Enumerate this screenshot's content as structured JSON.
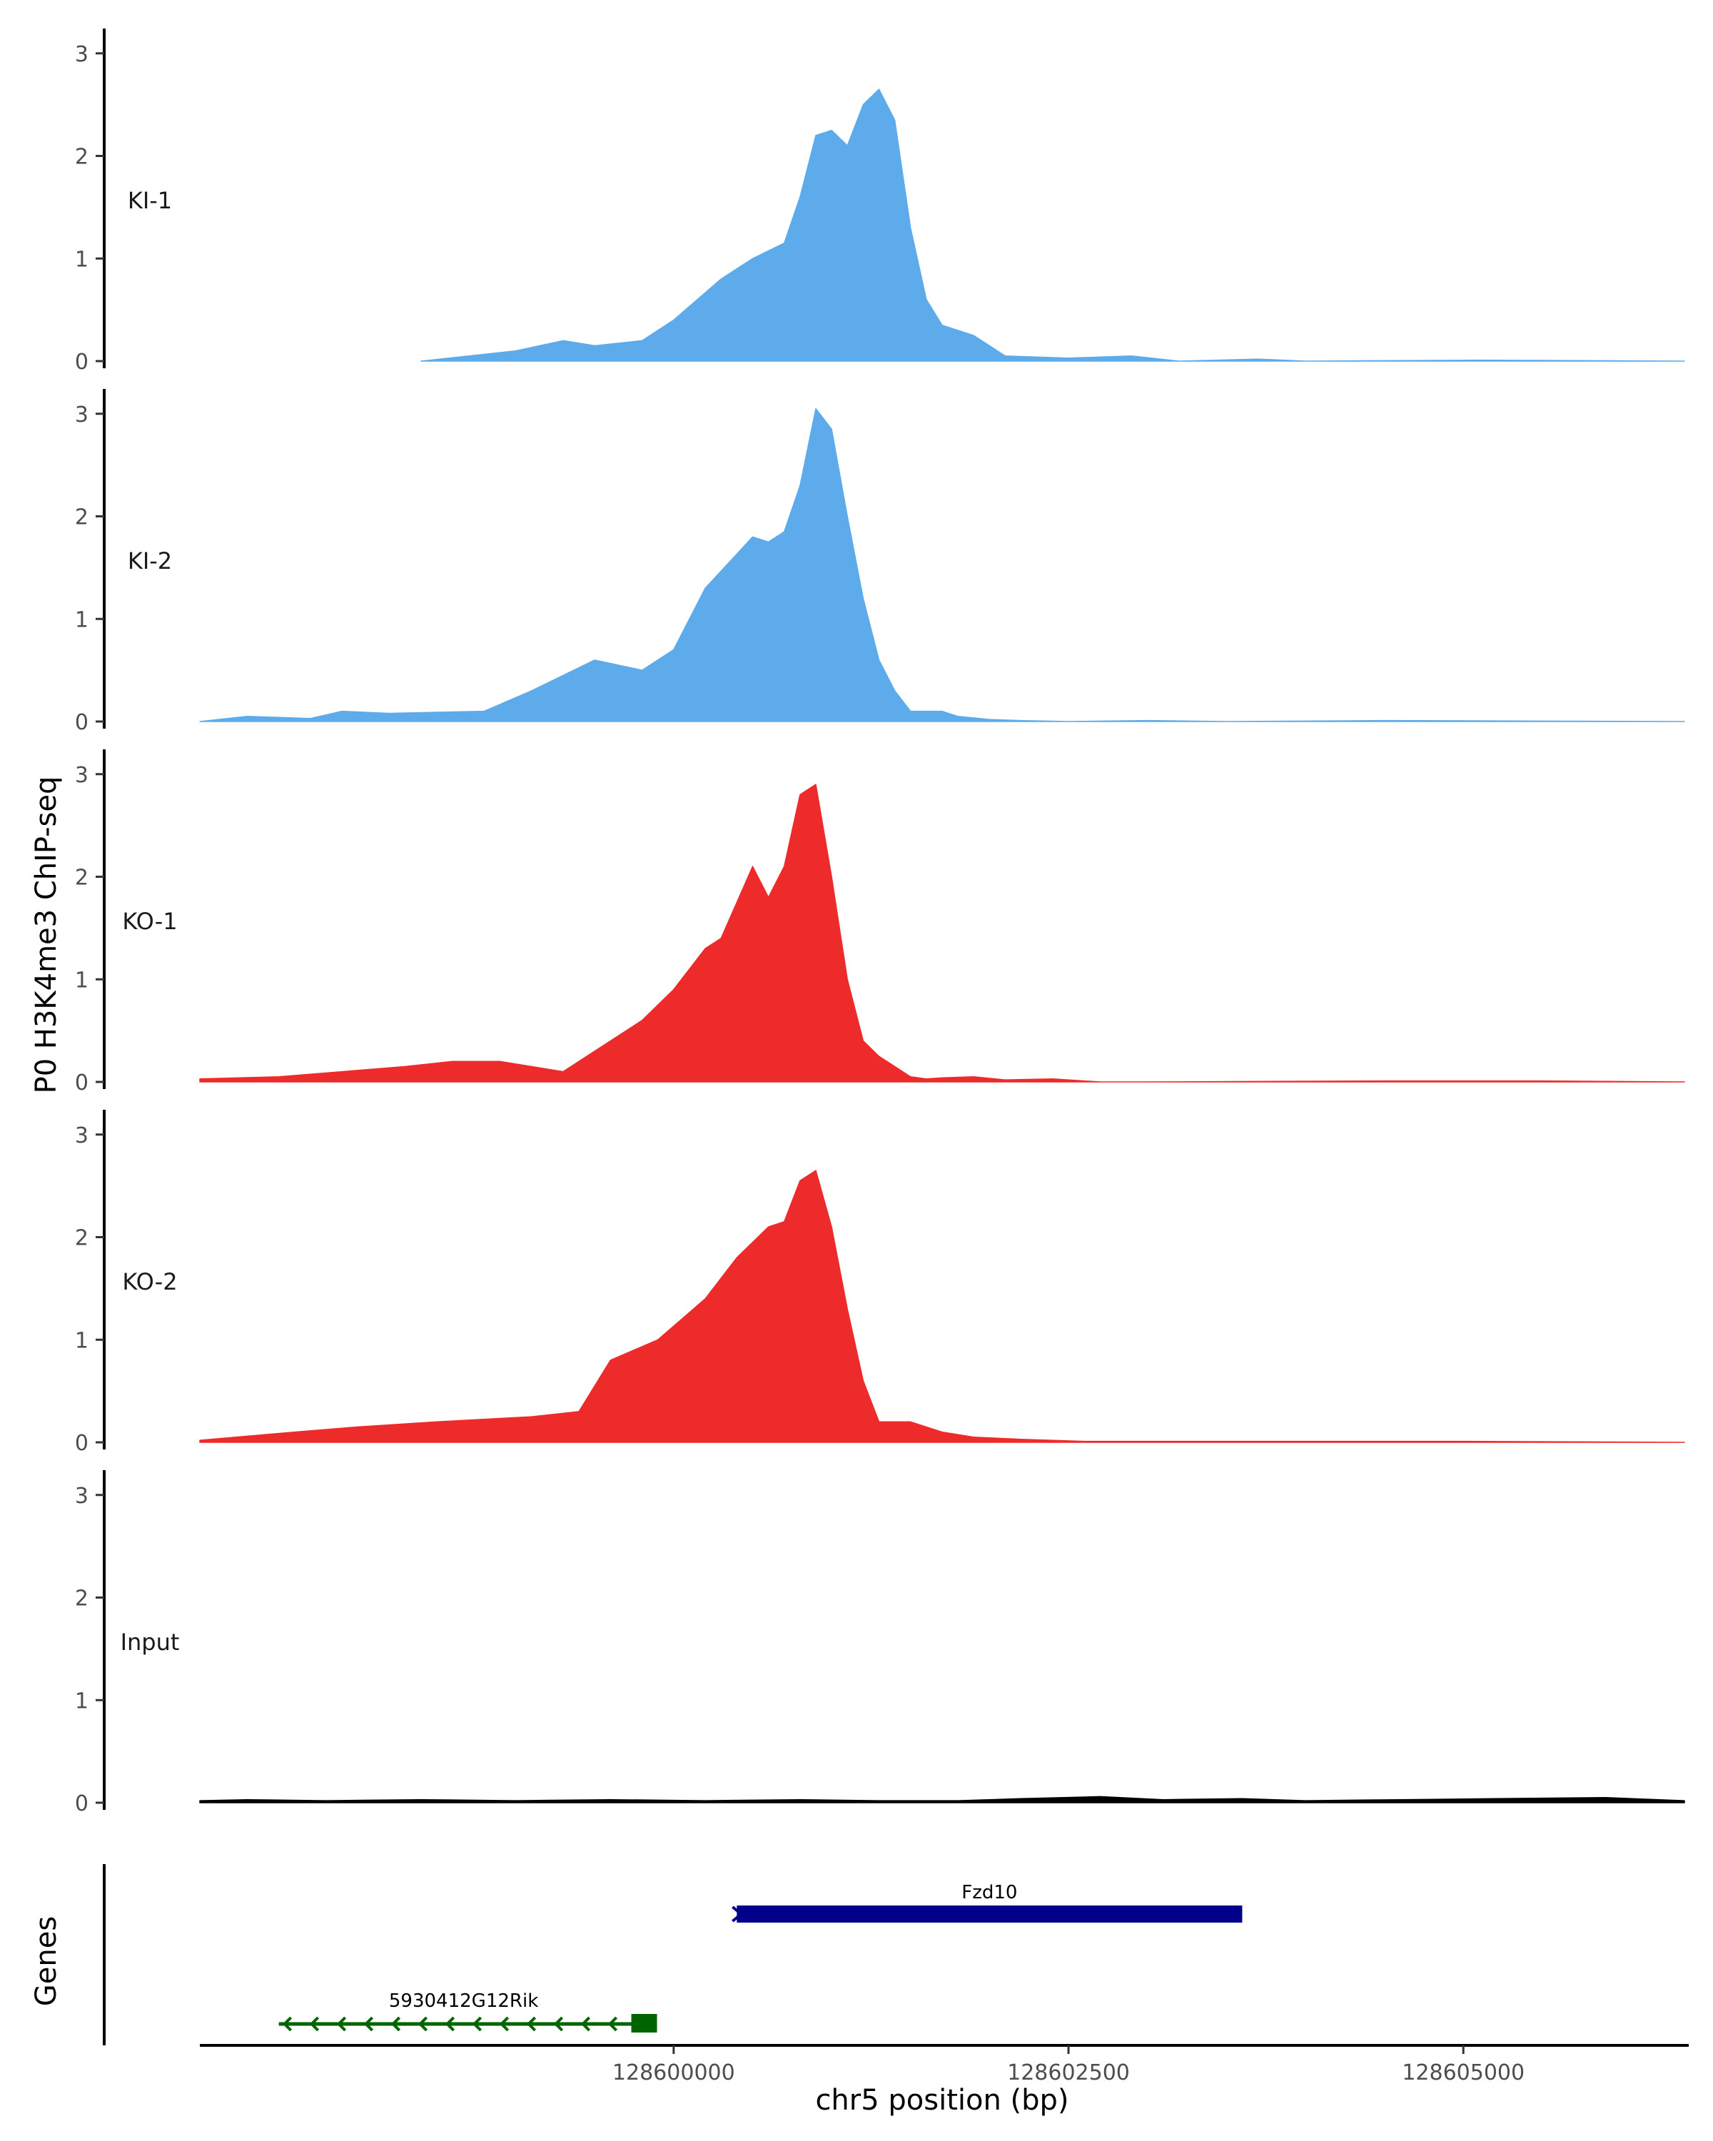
{
  "chart_data": {
    "type": "area",
    "title": "",
    "ylabel": "P0 H3K4me3 ChIP-seq",
    "xlabel": "chr5 position (bp)",
    "xlim": [
      128597000,
      128606400
    ],
    "ylim": [
      0,
      3.2
    ],
    "y_ticks": [
      "0",
      "1",
      "2",
      "3"
    ],
    "x_ticks": [
      {
        "value": 128600000,
        "label": "128600000"
      },
      {
        "value": 128602500,
        "label": "128602500"
      },
      {
        "value": 128605000,
        "label": "128605000"
      }
    ],
    "colors": {
      "KI": "#5dabeb",
      "KO": "#ee2b2b",
      "Input": "#000000",
      "fzd10": "#00008b",
      "rik": "#006400"
    },
    "tracks": [
      {
        "name": "KI-1",
        "color": "#5dabeb",
        "x": [
          128598400,
          128599000,
          128599300,
          128599500,
          128599800,
          128600000,
          128600300,
          128600400,
          128600500,
          128600700,
          128600800,
          128600900,
          128601000,
          128601100,
          128601200,
          128601300,
          128601400,
          128601500,
          128601600,
          128601700,
          128601900,
          128602100,
          128602500,
          128602900,
          128603200,
          128603700,
          128604000,
          128605100,
          128606400
        ],
        "y": [
          0,
          0.1,
          0.2,
          0.15,
          0.2,
          0.4,
          0.8,
          0.9,
          1.0,
          1.15,
          1.6,
          2.2,
          2.25,
          2.1,
          2.5,
          2.65,
          2.35,
          1.3,
          0.6,
          0.35,
          0.25,
          0.05,
          0.03,
          0.05,
          0,
          0.02,
          0,
          0.01,
          0
        ]
      },
      {
        "name": "KI-2",
        "color": "#5dabeb",
        "x": [
          128597000,
          128597300,
          128597700,
          128597900,
          128598200,
          128598800,
          128599100,
          128599500,
          128599800,
          128600000,
          128600200,
          128600500,
          128600600,
          128600700,
          128600800,
          128600900,
          128601000,
          128601100,
          128601200,
          128601300,
          128601400,
          128601500,
          128601600,
          128601700,
          128601800,
          128602000,
          128602200,
          128602500,
          128603000,
          128603500,
          128604500,
          128606400
        ],
        "y": [
          0,
          0.05,
          0.03,
          0.1,
          0.08,
          0.1,
          0.3,
          0.6,
          0.5,
          0.7,
          1.3,
          1.8,
          1.75,
          1.85,
          2.3,
          3.05,
          2.85,
          2.0,
          1.2,
          0.6,
          0.3,
          0.1,
          0.1,
          0.1,
          0.05,
          0.02,
          0.01,
          0,
          0.01,
          0,
          0.01,
          0
        ]
      },
      {
        "name": "KO-1",
        "color": "#ee2b2b",
        "x": [
          128597000,
          128597500,
          128597900,
          128598300,
          128598600,
          128598900,
          128599300,
          128599600,
          128599800,
          128600000,
          128600200,
          128600300,
          128600500,
          128600600,
          128600700,
          128600800,
          128600900,
          128601000,
          128601100,
          128601200,
          128601300,
          128601400,
          128601500,
          128601600,
          128601700,
          128601900,
          128602100,
          128602400,
          128602700,
          128603000,
          128604500,
          128605500,
          128606400
        ],
        "y": [
          0.03,
          0.05,
          0.1,
          0.15,
          0.2,
          0.2,
          0.1,
          0.4,
          0.6,
          0.9,
          1.3,
          1.4,
          2.1,
          1.8,
          2.1,
          2.8,
          2.9,
          2.0,
          1.0,
          0.4,
          0.25,
          0.15,
          0.05,
          0.03,
          0.04,
          0.05,
          0.02,
          0.03,
          0,
          0,
          0.01,
          0.01,
          0
        ]
      },
      {
        "name": "KO-2",
        "color": "#ee2b2b",
        "x": [
          128597000,
          128597600,
          128598000,
          128598500,
          128599100,
          128599400,
          128599600,
          128599900,
          128600200,
          128600400,
          128600600,
          128600700,
          128600800,
          128600900,
          128601000,
          128601100,
          128601200,
          128601300,
          128601400,
          128601500,
          128601700,
          128601900,
          128602200,
          128602600,
          128603000,
          128604000,
          128605000,
          128606400
        ],
        "y": [
          0.02,
          0.1,
          0.15,
          0.2,
          0.25,
          0.3,
          0.8,
          1.0,
          1.4,
          1.8,
          2.1,
          2.15,
          2.55,
          2.65,
          2.1,
          1.3,
          0.6,
          0.2,
          0.2,
          0.2,
          0.1,
          0.05,
          0.03,
          0.01,
          0.01,
          0.01,
          0.01,
          0
        ]
      },
      {
        "name": "Input",
        "color": "#000000",
        "x": [
          128597000,
          128597300,
          128597800,
          128598400,
          128599000,
          128599600,
          128600200,
          128600800,
          128601300,
          128601800,
          128602200,
          128602700,
          128603100,
          128603600,
          128604000,
          128604600,
          128605200,
          128605900,
          128606400
        ],
        "y": [
          0.02,
          0.03,
          0.02,
          0.03,
          0.02,
          0.03,
          0.02,
          0.03,
          0.02,
          0.02,
          0.04,
          0.06,
          0.03,
          0.04,
          0.02,
          0.03,
          0.04,
          0.05,
          0.02
        ]
      }
    ],
    "genes_label": "Genes",
    "genes": [
      {
        "name": "Fzd10",
        "start": 128600400,
        "end": 128603600,
        "strand": "+",
        "row": 0,
        "color": "#00008b"
      },
      {
        "name": "5930412G12Rik",
        "start": 128597500,
        "end": 128599750,
        "strand": "-",
        "row": 1,
        "color": "#006400"
      }
    ]
  }
}
